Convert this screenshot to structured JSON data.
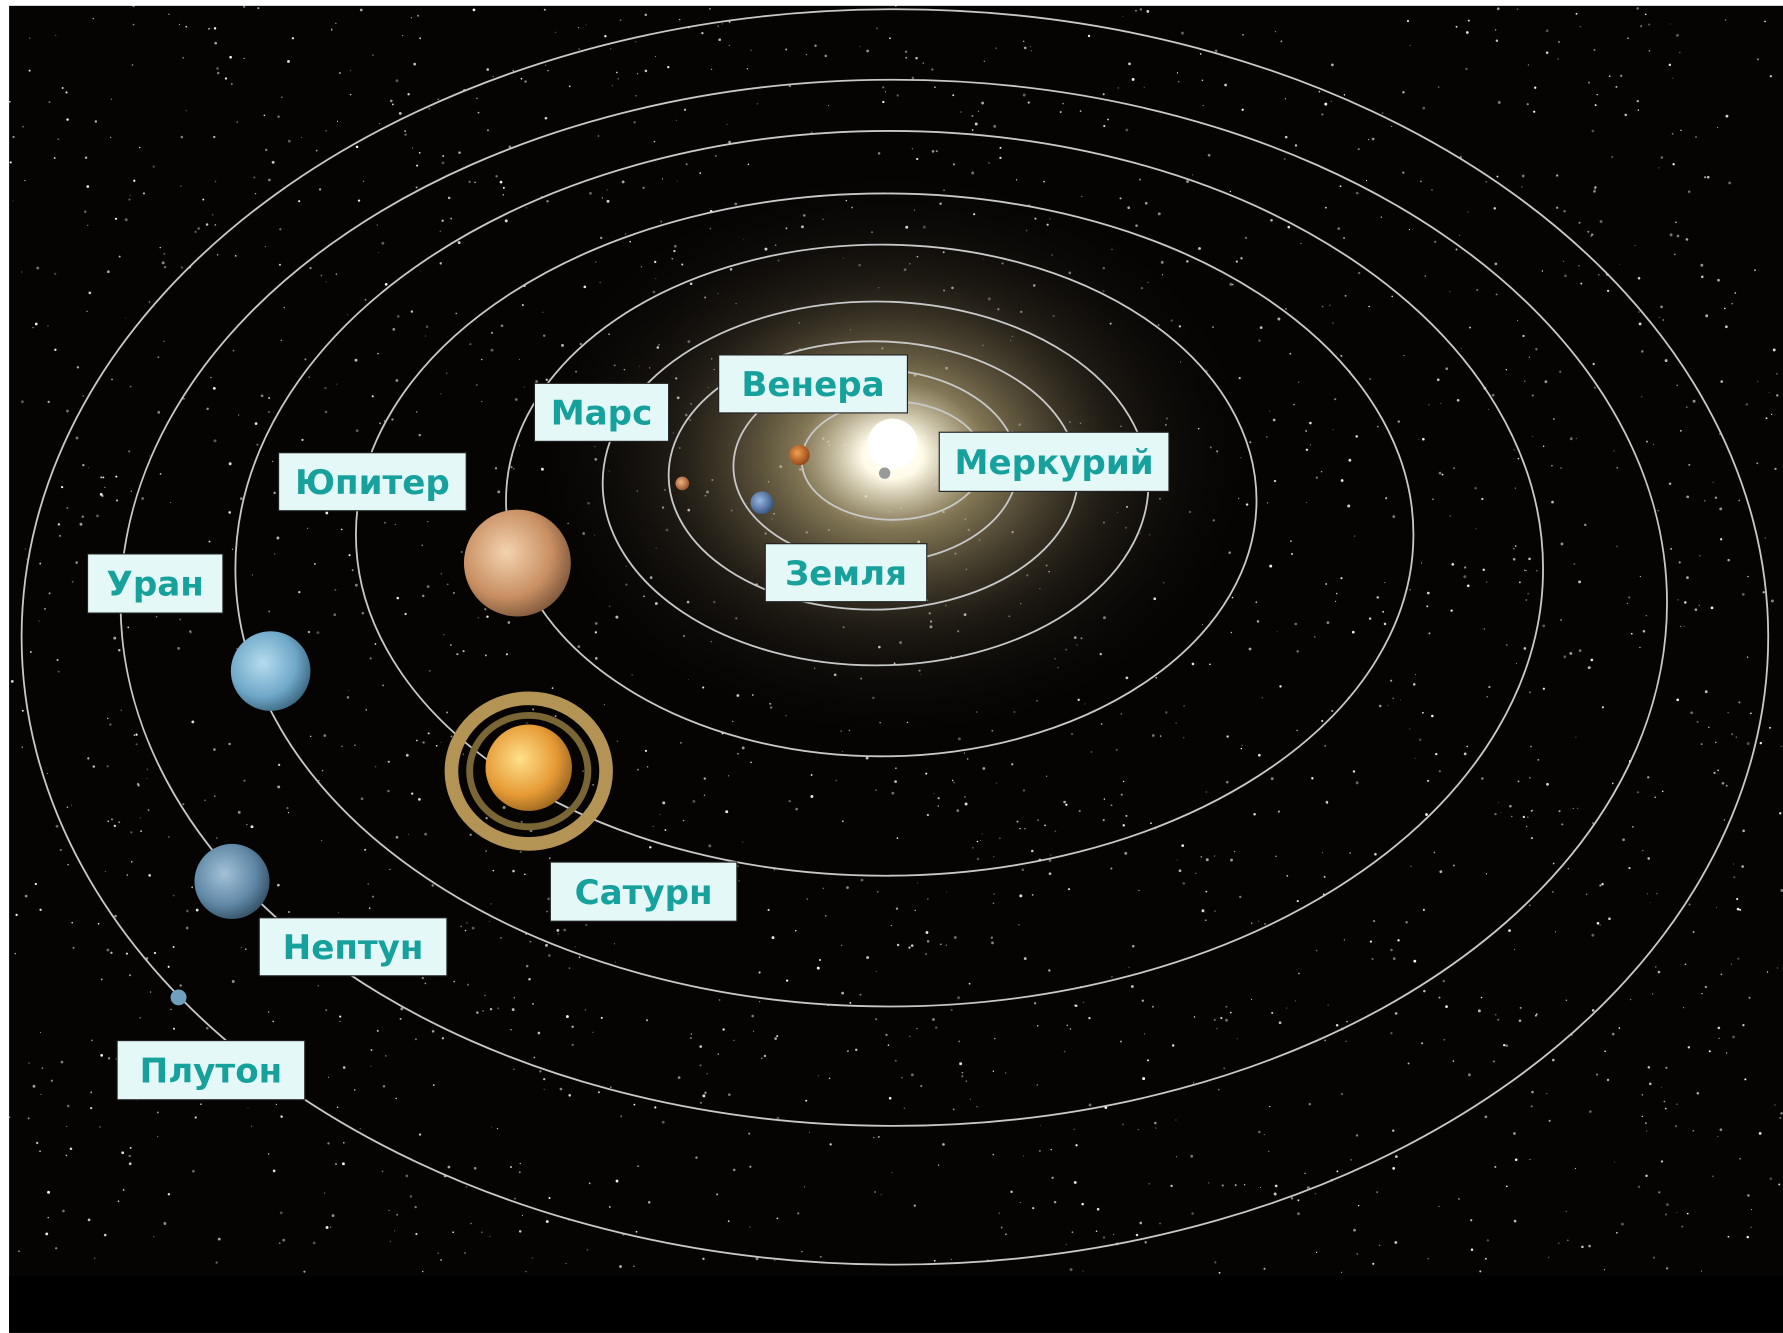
{
  "planets": [
    {
      "label": "Меркурий"
    },
    {
      "label": "Венера"
    },
    {
      "label": "Земля"
    },
    {
      "label": "Марс"
    },
    {
      "label": "Юпитер"
    },
    {
      "label": "Сатурн"
    },
    {
      "label": "Уран"
    },
    {
      "label": "Нептун"
    },
    {
      "label": "Плутон"
    }
  ]
}
